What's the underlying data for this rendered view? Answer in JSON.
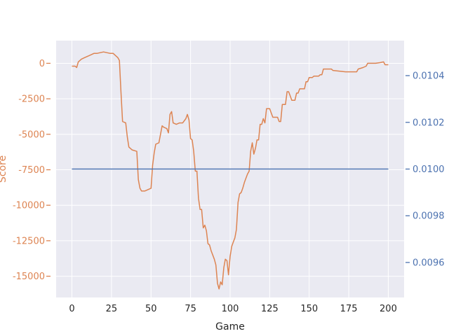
{
  "chart_data": {
    "type": "line",
    "xlabel": "Game",
    "ylabel": "Score",
    "xlim": [
      -10,
      210
    ],
    "x_ticks": [
      0,
      25,
      50,
      75,
      100,
      125,
      150,
      175,
      200
    ],
    "ylim_left": [
      -16500,
      1600
    ],
    "y_ticks_left": [
      0,
      -2500,
      -5000,
      -7500,
      -10000,
      -12500,
      -15000
    ],
    "ylim_right": [
      0.00945,
      0.01055
    ],
    "y_ticks_right": [
      "0.0096",
      "0.0098",
      "0.0100",
      "0.0102",
      "0.0104"
    ],
    "grid": true,
    "colors": {
      "background": "#eaeaf2",
      "grid": "#ffffff",
      "score": "#dd8452",
      "rate": "#4c72b0"
    },
    "series": [
      {
        "axis": "left",
        "color": "#dd8452",
        "points": [
          [
            0,
            -200
          ],
          [
            2,
            -200
          ],
          [
            3,
            -300
          ],
          [
            4,
            100
          ],
          [
            6,
            300
          ],
          [
            8,
            400
          ],
          [
            10,
            500
          ],
          [
            12,
            600
          ],
          [
            14,
            700
          ],
          [
            16,
            700
          ],
          [
            18,
            750
          ],
          [
            20,
            800
          ],
          [
            22,
            750
          ],
          [
            24,
            700
          ],
          [
            26,
            700
          ],
          [
            28,
            500
          ],
          [
            29,
            400
          ],
          [
            30,
            200
          ],
          [
            31,
            -2000
          ],
          [
            32,
            -4100
          ],
          [
            34,
            -4200
          ],
          [
            35,
            -5200
          ],
          [
            36,
            -5900
          ],
          [
            38,
            -6100
          ],
          [
            41,
            -6200
          ],
          [
            42,
            -8200
          ],
          [
            43,
            -8800
          ],
          [
            44,
            -9000
          ],
          [
            46,
            -9000
          ],
          [
            48,
            -8900
          ],
          [
            50,
            -8800
          ],
          [
            51,
            -7200
          ],
          [
            52,
            -6300
          ],
          [
            53,
            -5700
          ],
          [
            55,
            -5600
          ],
          [
            56,
            -5000
          ],
          [
            57,
            -4400
          ],
          [
            58,
            -4500
          ],
          [
            60,
            -4600
          ],
          [
            61,
            -4900
          ],
          [
            62,
            -3600
          ],
          [
            63,
            -3400
          ],
          [
            64,
            -4200
          ],
          [
            66,
            -4300
          ],
          [
            68,
            -4200
          ],
          [
            70,
            -4200
          ],
          [
            72,
            -3900
          ],
          [
            73,
            -3600
          ],
          [
            74,
            -4000
          ],
          [
            75,
            -5300
          ],
          [
            76,
            -5400
          ],
          [
            77,
            -6200
          ],
          [
            78,
            -7600
          ],
          [
            79,
            -7600
          ],
          [
            80,
            -9500
          ],
          [
            81,
            -10300
          ],
          [
            82,
            -10300
          ],
          [
            83,
            -11600
          ],
          [
            84,
            -11400
          ],
          [
            85,
            -11800
          ],
          [
            86,
            -12700
          ],
          [
            87,
            -12800
          ],
          [
            88,
            -13200
          ],
          [
            89,
            -13500
          ],
          [
            90,
            -13800
          ],
          [
            91,
            -14200
          ],
          [
            92,
            -15500
          ],
          [
            93,
            -15900
          ],
          [
            94,
            -15400
          ],
          [
            95,
            -15600
          ],
          [
            96,
            -14400
          ],
          [
            97,
            -13800
          ],
          [
            98,
            -13900
          ],
          [
            99,
            -14900
          ],
          [
            100,
            -13600
          ],
          [
            101,
            -12900
          ],
          [
            102,
            -12600
          ],
          [
            103,
            -12300
          ],
          [
            104,
            -11700
          ],
          [
            105,
            -9800
          ],
          [
            106,
            -9200
          ],
          [
            107,
            -9100
          ],
          [
            108,
            -8800
          ],
          [
            109,
            -8400
          ],
          [
            110,
            -8100
          ],
          [
            111,
            -7800
          ],
          [
            112,
            -7600
          ],
          [
            113,
            -6200
          ],
          [
            114,
            -5600
          ],
          [
            115,
            -6400
          ],
          [
            116,
            -6000
          ],
          [
            117,
            -5400
          ],
          [
            118,
            -5400
          ],
          [
            119,
            -4300
          ],
          [
            120,
            -4300
          ],
          [
            121,
            -3900
          ],
          [
            122,
            -4200
          ],
          [
            123,
            -3200
          ],
          [
            125,
            -3200
          ],
          [
            126,
            -3500
          ],
          [
            127,
            -3800
          ],
          [
            130,
            -3800
          ],
          [
            131,
            -4100
          ],
          [
            132,
            -4100
          ],
          [
            133,
            -2900
          ],
          [
            135,
            -2900
          ],
          [
            136,
            -2000
          ],
          [
            137,
            -2000
          ],
          [
            138,
            -2300
          ],
          [
            139,
            -2600
          ],
          [
            141,
            -2600
          ],
          [
            142,
            -2100
          ],
          [
            143,
            -2100
          ],
          [
            144,
            -1800
          ],
          [
            147,
            -1800
          ],
          [
            148,
            -1300
          ],
          [
            149,
            -1300
          ],
          [
            150,
            -1000
          ],
          [
            152,
            -1000
          ],
          [
            153,
            -900
          ],
          [
            156,
            -900
          ],
          [
            157,
            -800
          ],
          [
            158,
            -800
          ],
          [
            159,
            -400
          ],
          [
            164,
            -400
          ],
          [
            165,
            -500
          ],
          [
            173,
            -600
          ],
          [
            180,
            -600
          ],
          [
            181,
            -400
          ],
          [
            184,
            -300
          ],
          [
            186,
            -200
          ],
          [
            187,
            0
          ],
          [
            190,
            0
          ],
          [
            192,
            0
          ],
          [
            195,
            50
          ],
          [
            197,
            100
          ],
          [
            198,
            -100
          ],
          [
            200,
            -100
          ]
        ]
      },
      {
        "axis": "right",
        "color": "#4c72b0",
        "points": [
          [
            0,
            0.01
          ],
          [
            200,
            0.01
          ]
        ]
      }
    ]
  }
}
